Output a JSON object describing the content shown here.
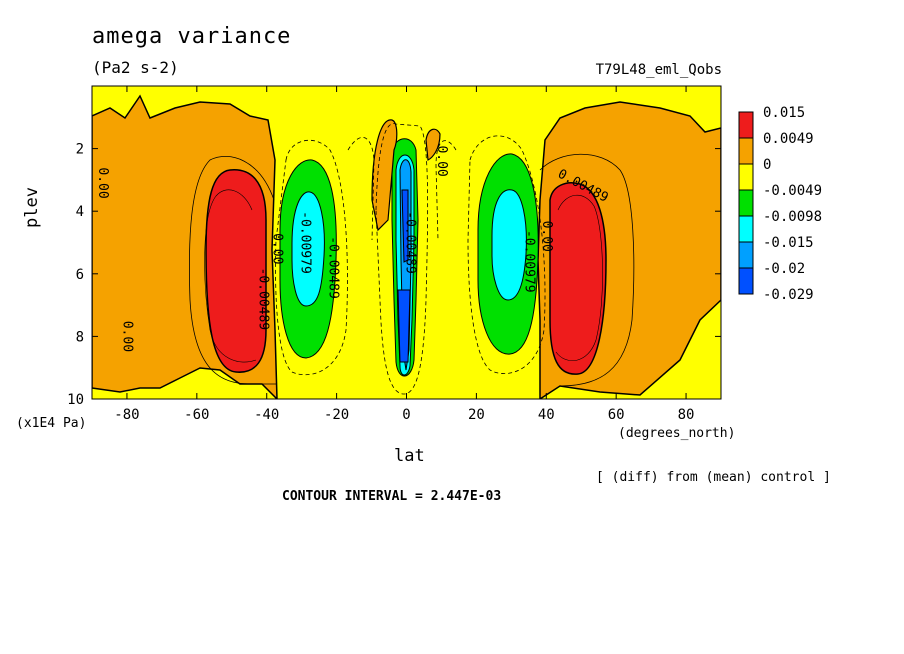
{
  "header": {
    "title": "amega variance",
    "units": "(Pa2 s-2)",
    "experiment": "T79L48_eml_Qobs"
  },
  "footer": {
    "diff_note": "[ (diff) from (mean) control ]",
    "contour_interval": "CONTOUR INTERVAL = 2.447E-03"
  },
  "chart_data": {
    "type": "heatmap",
    "title": "amega variance",
    "subtitle": "(Pa2 s-2)",
    "xlabel": "lat",
    "x_units": "(degrees_north)",
    "ylabel": "plev",
    "y_units": "(x1E4 Pa)",
    "xlim": [
      -90,
      90
    ],
    "ylim": [
      10,
      0
    ],
    "x_ticks": [
      -80,
      -60,
      -40,
      -20,
      0,
      20,
      40,
      60,
      80
    ],
    "y_ticks": [
      2,
      4,
      6,
      8,
      10
    ],
    "x_tick_labels": [
      "-80",
      "-60",
      "-40",
      "-20",
      "0",
      "20",
      "40",
      "60",
      "80"
    ],
    "y_tick_labels": [
      "2",
      "4",
      "6",
      "8",
      "10"
    ],
    "colorbar": {
      "position": "right",
      "labels": [
        "0.015",
        "0.0049",
        "0",
        "-0.0049",
        "-0.0098",
        "-0.015",
        "-0.02",
        "-0.029"
      ],
      "colors": [
        "#ee1c1c",
        "#f5a200",
        "#ffff00",
        "#00e000",
        "#00ffff",
        "#00a0ff",
        "#0050ff"
      ]
    },
    "contour_labels": [
      {
        "text": "-0.00489",
        "lat": -42,
        "plev": 6.8
      },
      {
        "text": "0.00",
        "lat": -38,
        "plev": 5.2
      },
      {
        "text": "-0.00979",
        "lat": -30,
        "plev": 5.0
      },
      {
        "text": "-0.00489",
        "lat": -22,
        "plev": 5.8
      },
      {
        "text": "0.00",
        "lat": -81,
        "plev": 8.0
      },
      {
        "text": "0.00",
        "lat": -88,
        "plev": 3.1
      },
      {
        "text": "-0.00489",
        "lat": 0,
        "plev": 5.0
      },
      {
        "text": "0.00",
        "lat": 9,
        "plev": 2.4
      },
      {
        "text": "0.00489",
        "lat": 50,
        "plev": 3.3
      },
      {
        "text": "-0.00979",
        "lat": 34,
        "plev": 5.6
      },
      {
        "text": "0.00",
        "lat": 39,
        "plev": 4.8
      }
    ],
    "cells": [
      {
        "lat": -50,
        "plev": 5.6,
        "bin": 0
      },
      {
        "lat": 50,
        "plev": 5.6,
        "bin": 0
      },
      {
        "lat": -29,
        "plev": 5.2,
        "bin": 4
      },
      {
        "lat": 30,
        "plev": 5.0,
        "bin": 4
      },
      {
        "lat": 0,
        "plev": 6.0,
        "bin": 5
      }
    ],
    "grid": false
  }
}
